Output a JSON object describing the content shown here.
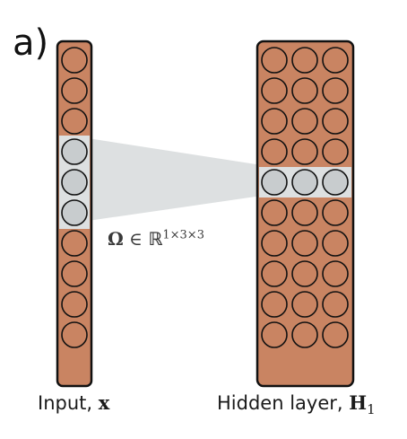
{
  "panel_label": "a)",
  "input_caption": {
    "text": "Input, ",
    "symbol": "x"
  },
  "hidden_caption": {
    "text": "Hidden layer, ",
    "symbol": "H",
    "subscript": "1"
  },
  "kernel_label": {
    "symbol": "Ω",
    "relation": " ∈ ",
    "space": "ℝ",
    "dims": "1×3×3"
  },
  "input_layer": {
    "neurons": 10,
    "highlighted_rows": [
      3,
      4,
      5
    ]
  },
  "hidden_layer": {
    "rows": 10,
    "cols": 3,
    "highlighted_row": 4
  },
  "colors": {
    "neuron_fill": "#c98462",
    "highlight_fill": "#c8ccce",
    "band_fill": "#dde0e1",
    "stroke": "#111111"
  }
}
